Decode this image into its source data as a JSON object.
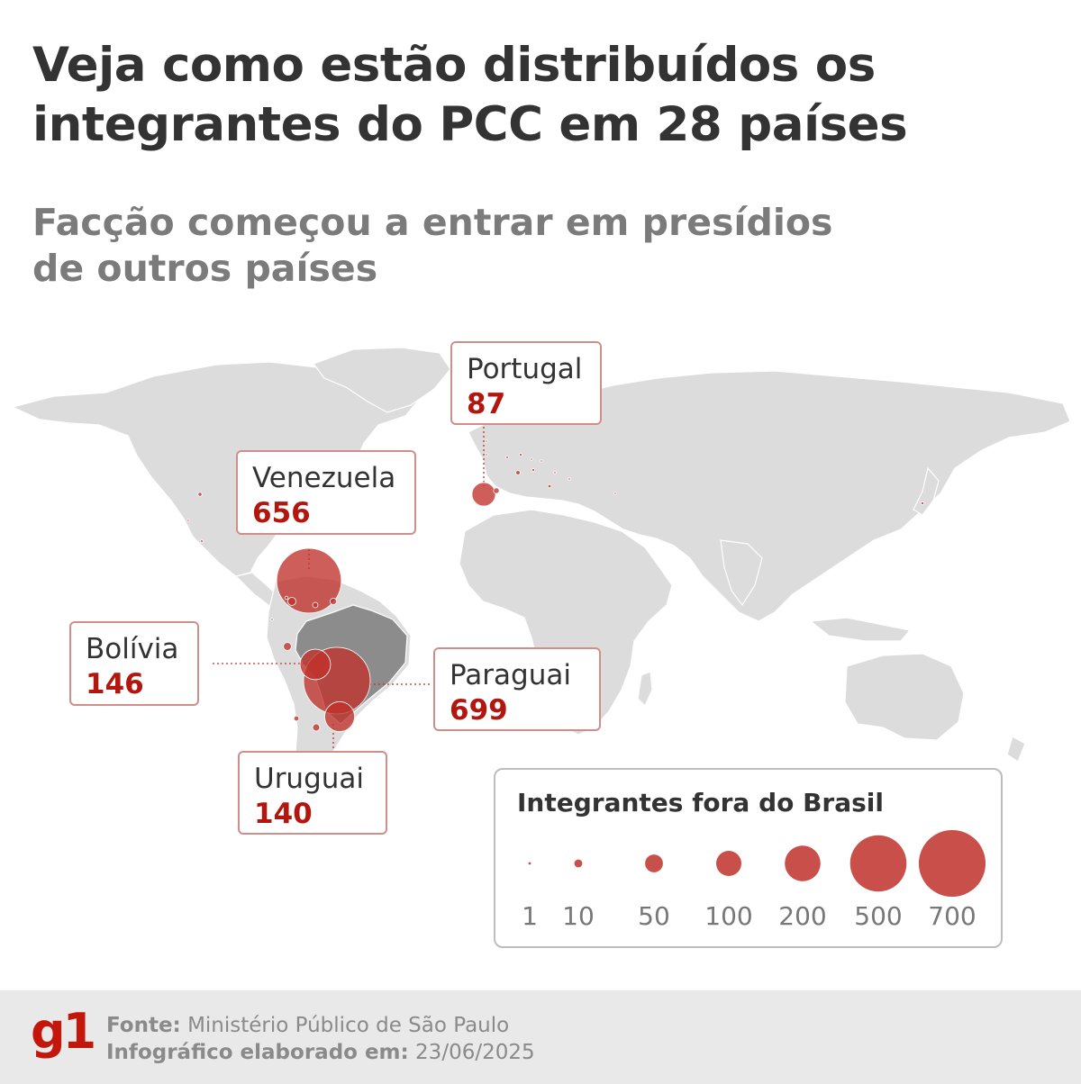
{
  "header": {
    "title": "Veja como estão distribuídos os integrantes do PCC em 28 países",
    "subtitle": "Facção começou a entrar em presídios de outros países"
  },
  "colors": {
    "bubble": "#c0312a",
    "brazil": "#8c8c8c",
    "land": "#dcdcdc",
    "highlight_value": "#b3160e"
  },
  "callouts": [
    {
      "country": "Portugal",
      "value": "87"
    },
    {
      "country": "Venezuela",
      "value": "656"
    },
    {
      "country": "Bolívia",
      "value": "146"
    },
    {
      "country": "Paraguai",
      "value": "699"
    },
    {
      "country": "Uruguai",
      "value": "140"
    }
  ],
  "legend": {
    "title": "Integrantes fora do Brasil",
    "items": [
      {
        "label": "1",
        "value": 1
      },
      {
        "label": "10",
        "value": 10
      },
      {
        "label": "50",
        "value": 50
      },
      {
        "label": "100",
        "value": 100
      },
      {
        "label": "200",
        "value": 200
      },
      {
        "label": "500",
        "value": 500
      },
      {
        "label": "700",
        "value": 700
      }
    ]
  },
  "footer": {
    "logo": "g1",
    "source_label": "Fonte:",
    "source_value": "Ministério Público de São Paulo",
    "date_label": "Infográfico elaborado em:",
    "date_value": "23/06/2025"
  }
}
